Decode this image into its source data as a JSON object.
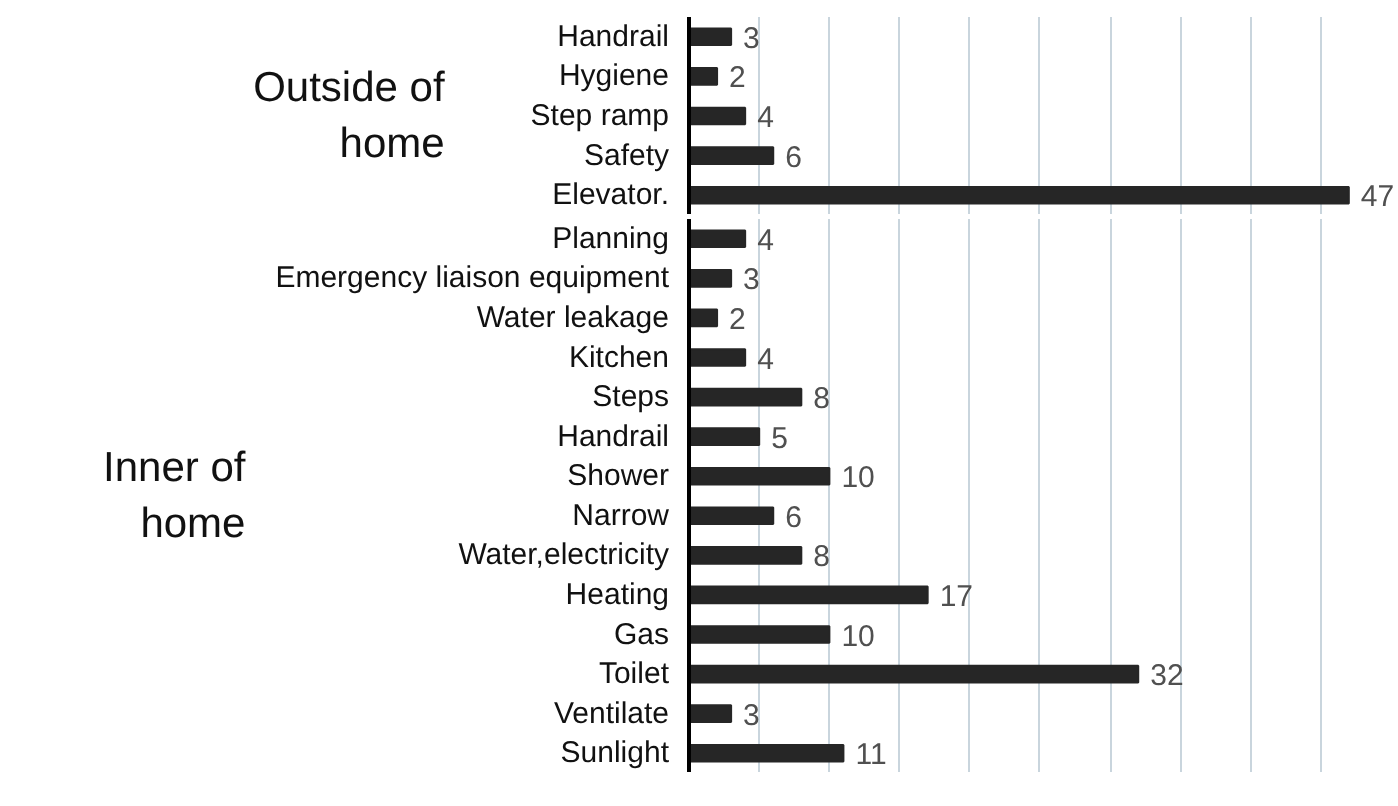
{
  "chart_data": [
    {
      "type": "bar",
      "orientation": "horizontal",
      "title": "Outside of home",
      "categories": [
        "Handrail",
        "Hygiene",
        "Step ramp",
        "Safety",
        "Elevator."
      ],
      "values": [
        3,
        2,
        4,
        6,
        47
      ],
      "color": "#262626",
      "data_labels": true,
      "xticks": [
        {
          "value": 5,
          "label": null
        },
        {
          "value": 10,
          "label": null
        },
        {
          "value": 15,
          "label": null
        },
        {
          "value": 20,
          "label": null
        },
        {
          "value": 25,
          "label": null
        },
        {
          "value": 30,
          "label": null
        },
        {
          "value": 35,
          "label": null
        },
        {
          "value": 40,
          "label": null
        },
        {
          "value": 45,
          "label": null
        }
      ],
      "grid": "x",
      "tick_labels": "y"
    },
    {
      "type": "bar",
      "orientation": "horizontal",
      "title": "Inner of home",
      "categories": [
        "Planning",
        "Emergency liaison equipment",
        "Water leakage",
        "Kitchen",
        "Steps",
        "Handrail",
        "Shower",
        "Narrow",
        "Water,electricity",
        "Heating",
        "Gas",
        "Toilet",
        "Ventilate",
        "Sunlight"
      ],
      "values": [
        4,
        3,
        2,
        4,
        8,
        5,
        10,
        6,
        8,
        17,
        10,
        32,
        3,
        11
      ],
      "color": "#262626",
      "data_labels": true,
      "xticks": [
        {
          "value": 5,
          "label": null
        },
        {
          "value": 10,
          "label": null
        },
        {
          "value": 15,
          "label": null
        },
        {
          "value": 20,
          "label": null
        },
        {
          "value": 25,
          "label": null
        },
        {
          "value": 30,
          "label": null
        },
        {
          "value": 35,
          "label": null
        },
        {
          "value": 40,
          "label": null
        },
        {
          "value": 45,
          "label": null
        }
      ],
      "grid": "x",
      "tick_labels": "y"
    }
  ]
}
